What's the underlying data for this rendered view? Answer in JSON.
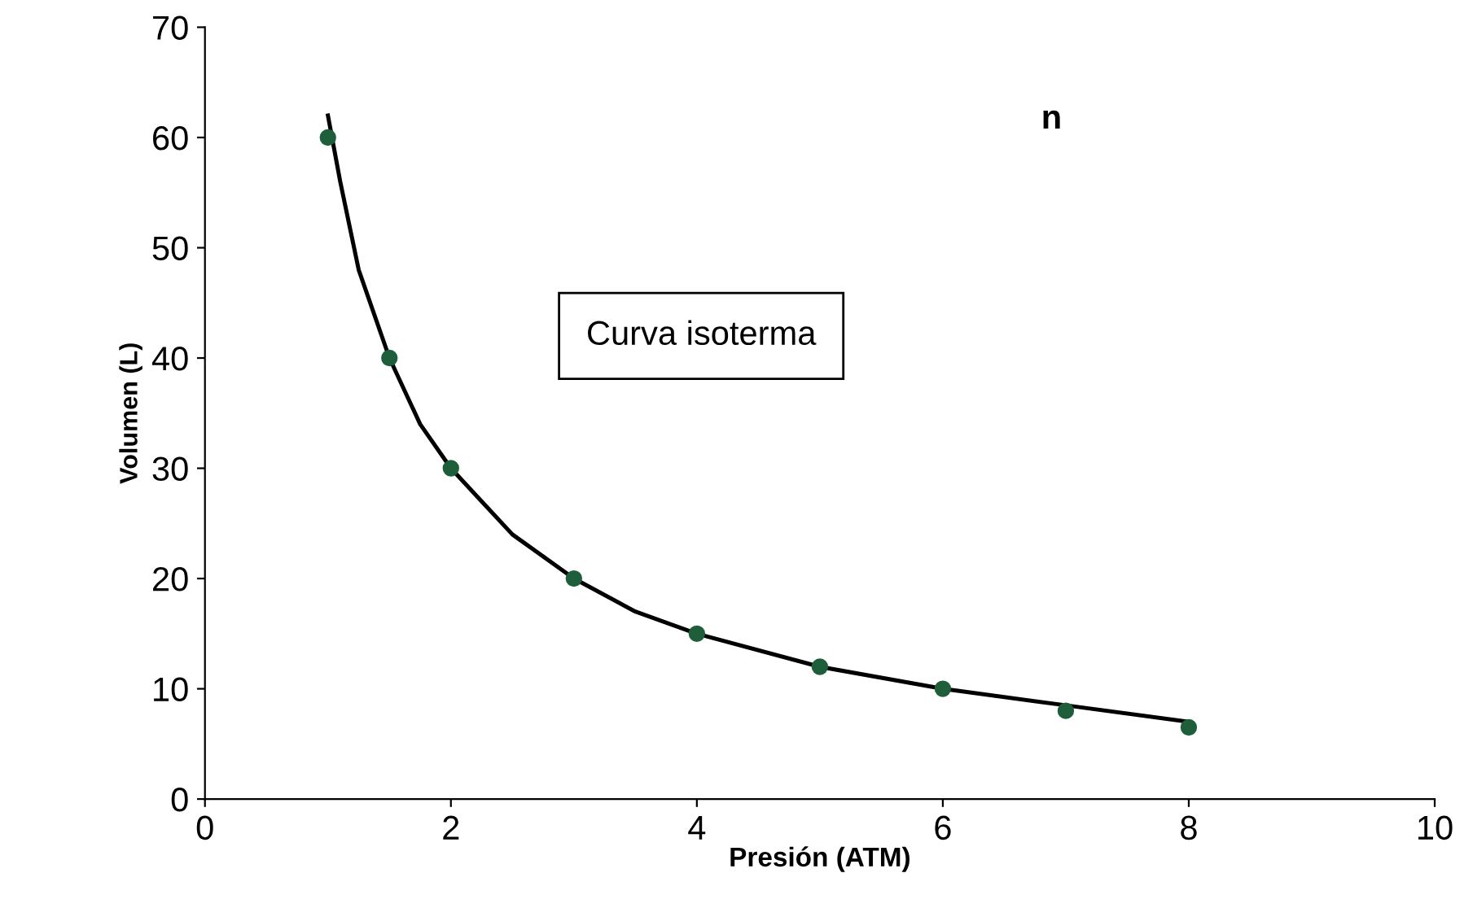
{
  "chart_data": {
    "type": "scatter",
    "xlabel": "Presión (ATM)",
    "ylabel": "Volumen (L)",
    "xlim": [
      0,
      10
    ],
    "xticks": [
      0,
      2,
      4,
      6,
      8,
      10
    ],
    "ylim": [
      0,
      70
    ],
    "yticks": [
      0,
      10,
      20,
      30,
      40,
      50,
      60,
      70
    ],
    "grid": false,
    "legend": false,
    "annotations": [
      "n",
      "Curva isoterma"
    ],
    "series": [
      {
        "color": "#1f5e3a",
        "marker": "circle",
        "x": [
          1,
          1.5,
          2,
          3,
          4,
          5,
          6,
          7,
          8
        ],
        "values": [
          60,
          40,
          30,
          20,
          15,
          12,
          10,
          8,
          6.5
        ]
      },
      {
        "type": "line",
        "color": "#000000",
        "marker": "none",
        "line_style": "solid",
        "x": [
          1,
          1.1,
          1.25,
          1.5,
          1.75,
          2,
          2.25,
          2.5,
          3,
          3.5,
          4,
          5,
          6,
          7,
          8
        ],
        "values": [
          62,
          56,
          48,
          40,
          34,
          30,
          27,
          24,
          20,
          17,
          15,
          12,
          10,
          8.5,
          7
        ]
      }
    ]
  }
}
